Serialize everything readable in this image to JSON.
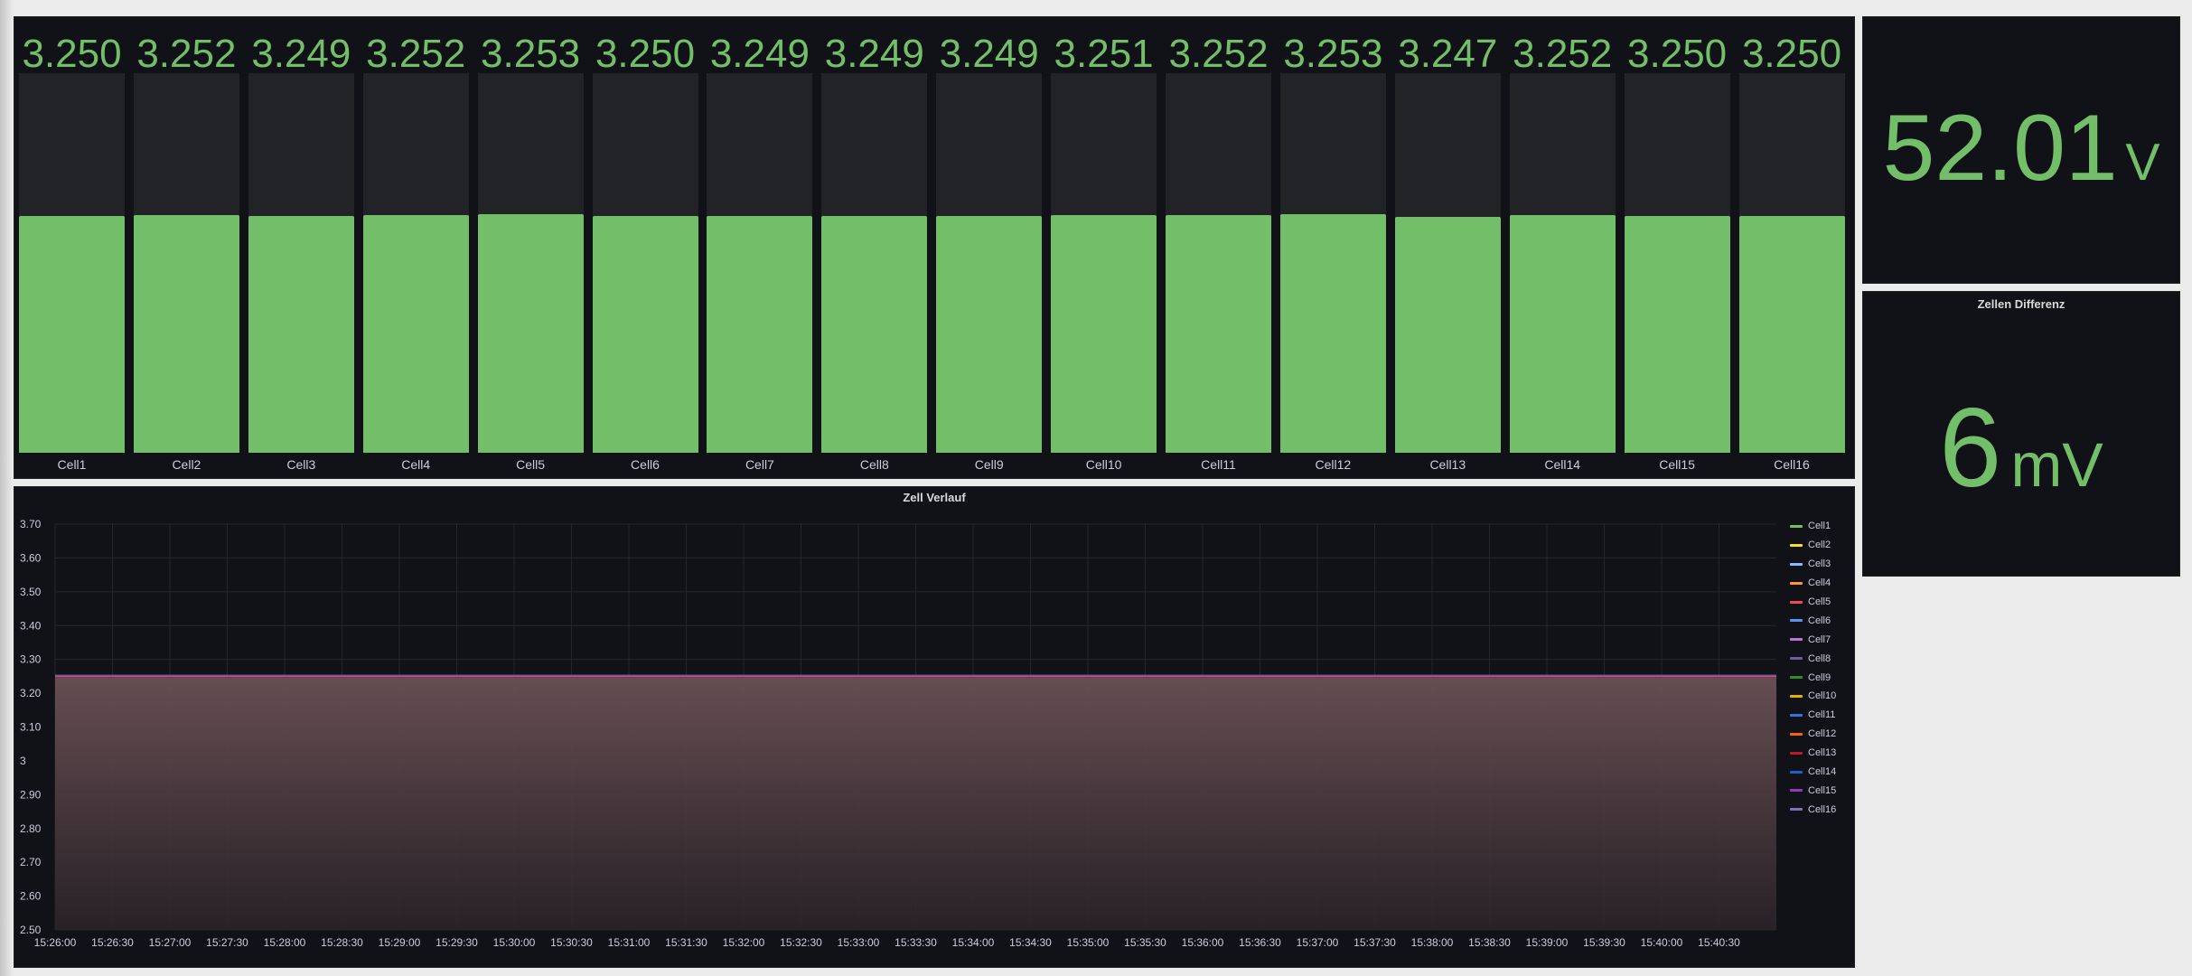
{
  "cells": [
    {
      "name": "Cell1",
      "value": "3.250"
    },
    {
      "name": "Cell2",
      "value": "3.252"
    },
    {
      "name": "Cell3",
      "value": "3.249"
    },
    {
      "name": "Cell4",
      "value": "3.252"
    },
    {
      "name": "Cell5",
      "value": "3.253"
    },
    {
      "name": "Cell6",
      "value": "3.250"
    },
    {
      "name": "Cell7",
      "value": "3.249"
    },
    {
      "name": "Cell8",
      "value": "3.249"
    },
    {
      "name": "Cell9",
      "value": "3.249"
    },
    {
      "name": "Cell10",
      "value": "3.251"
    },
    {
      "name": "Cell11",
      "value": "3.252"
    },
    {
      "name": "Cell12",
      "value": "3.253"
    },
    {
      "name": "Cell13",
      "value": "3.247"
    },
    {
      "name": "Cell14",
      "value": "3.252"
    },
    {
      "name": "Cell15",
      "value": "3.250"
    },
    {
      "name": "Cell16",
      "value": "3.250"
    }
  ],
  "cell_bar_scale": {
    "min": 2.5,
    "max": 3.7
  },
  "colors": {
    "value_green": "#73bf69",
    "panel_bg": "#111217",
    "bar_track": "#222327",
    "page_bg": "#ebebeb"
  },
  "total": {
    "value": "52.01",
    "unit": "V"
  },
  "difference": {
    "title": "Zellen Differenz",
    "value": "6",
    "unit": "mV"
  },
  "chart_data": {
    "type": "line",
    "title": "Zell Verlauf",
    "xlabel": "",
    "ylabel": "",
    "ylim": [
      2.5,
      3.7
    ],
    "y_ticks": [
      "3.70",
      "3.60",
      "3.50",
      "3.40",
      "3.30",
      "3.20",
      "3.10",
      "3",
      "2.90",
      "2.80",
      "2.70",
      "2.60",
      "2.50"
    ],
    "x_ticks": [
      "15:26:00",
      "15:26:30",
      "15:27:00",
      "15:27:30",
      "15:28:00",
      "15:28:30",
      "15:29:00",
      "15:29:30",
      "15:30:00",
      "15:30:30",
      "15:31:00",
      "15:31:30",
      "15:32:00",
      "15:32:30",
      "15:33:00",
      "15:33:30",
      "15:34:00",
      "15:34:30",
      "15:35:00",
      "15:35:30",
      "15:36:00",
      "15:36:30",
      "15:37:00",
      "15:37:30",
      "15:38:00",
      "15:38:30",
      "15:39:00",
      "15:39:30",
      "15:40:00",
      "15:40:30"
    ],
    "x_range": [
      "15:26:00",
      "15:41:00"
    ],
    "grid": true,
    "legend_position": "right",
    "fill": "area",
    "series": [
      {
        "name": "Cell1",
        "color": "#73bf69",
        "values": [
          3.25,
          3.25
        ]
      },
      {
        "name": "Cell2",
        "color": "#fade2a",
        "values": [
          3.252,
          3.252
        ]
      },
      {
        "name": "Cell3",
        "color": "#8ab8ff",
        "values": [
          3.249,
          3.249
        ]
      },
      {
        "name": "Cell4",
        "color": "#ff9830",
        "values": [
          3.252,
          3.252
        ]
      },
      {
        "name": "Cell5",
        "color": "#f2495c",
        "values": [
          3.253,
          3.253
        ]
      },
      {
        "name": "Cell6",
        "color": "#5794f2",
        "values": [
          3.25,
          3.25
        ]
      },
      {
        "name": "Cell7",
        "color": "#b877d9",
        "values": [
          3.249,
          3.249
        ]
      },
      {
        "name": "Cell8",
        "color": "#705da0",
        "values": [
          3.249,
          3.249
        ]
      },
      {
        "name": "Cell9",
        "color": "#37872d",
        "values": [
          3.249,
          3.249
        ]
      },
      {
        "name": "Cell10",
        "color": "#e0b400",
        "values": [
          3.251,
          3.251
        ]
      },
      {
        "name": "Cell11",
        "color": "#3274d9",
        "values": [
          3.252,
          3.252
        ]
      },
      {
        "name": "Cell12",
        "color": "#fa6400",
        "values": [
          3.253,
          3.253
        ]
      },
      {
        "name": "Cell13",
        "color": "#c4162a",
        "values": [
          3.247,
          3.247
        ]
      },
      {
        "name": "Cell14",
        "color": "#1f60c4",
        "values": [
          3.252,
          3.252
        ]
      },
      {
        "name": "Cell15",
        "color": "#8f3bb8",
        "values": [
          3.25,
          3.25
        ]
      },
      {
        "name": "Cell16",
        "color": "#806eb7",
        "values": [
          3.25,
          3.25
        ]
      }
    ]
  }
}
